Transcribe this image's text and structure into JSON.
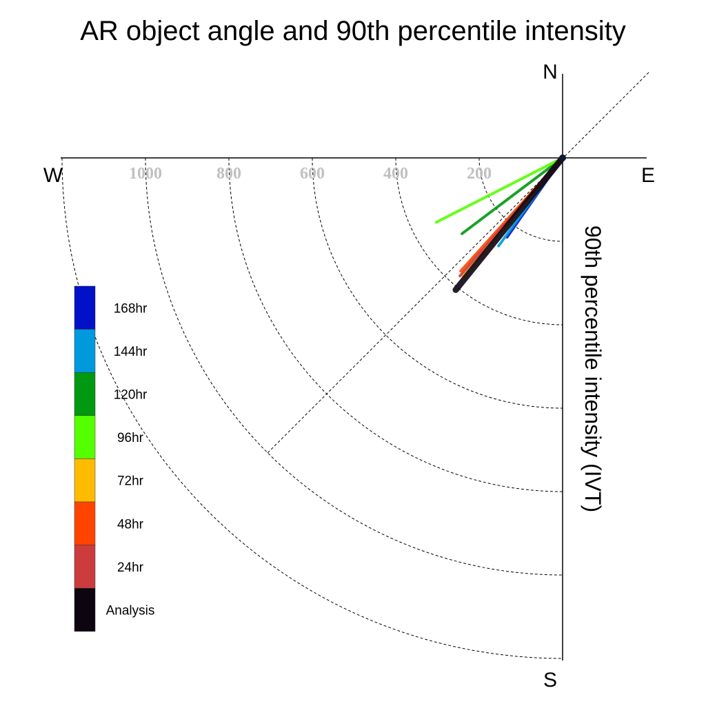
{
  "chart_data": {
    "type": "polar-quadrant",
    "title": "AR object angle and 90th percentile intensity",
    "ylabel": "90th percentile intensity (IVT)",
    "compass": {
      "north": "N",
      "south": "S",
      "east": "E",
      "west": "W"
    },
    "radial_ticks": [
      200,
      400,
      600,
      800,
      1000
    ],
    "radial_tick_labels": [
      "200",
      "400",
      "600",
      "800",
      "1000"
    ],
    "rlim": [
      0,
      1200
    ],
    "grid": true,
    "legend_position": "left",
    "series": [
      {
        "name": "168hr",
        "color": "#0011c8",
        "angle_deg": 215,
        "intensity": 232
      },
      {
        "name": "144hr",
        "color": "#0099dd",
        "angle_deg": 216,
        "intensity": 261
      },
      {
        "name": "120hr",
        "color": "#009911",
        "angle_deg": 233,
        "intensity": 302
      },
      {
        "name": "96hr",
        "color": "#55ff00",
        "angle_deg": 243,
        "intensity": 340
      },
      {
        "name": "72hr",
        "color": "#ffbb00",
        "angle_deg": 220,
        "intensity": 371
      },
      {
        "name": "48hr",
        "color": "#ff4400",
        "angle_deg": 222,
        "intensity": 365
      },
      {
        "name": "24hr",
        "color": "#cc3c3c",
        "angle_deg": 221,
        "intensity": 375
      },
      {
        "name": "Analysis",
        "color": "#0d0510",
        "angle_deg": 219,
        "intensity": 407
      }
    ],
    "legend_order": [
      "168hr",
      "144hr",
      "120hr",
      "96hr",
      "72hr",
      "48hr",
      "24hr",
      "Analysis"
    ]
  }
}
